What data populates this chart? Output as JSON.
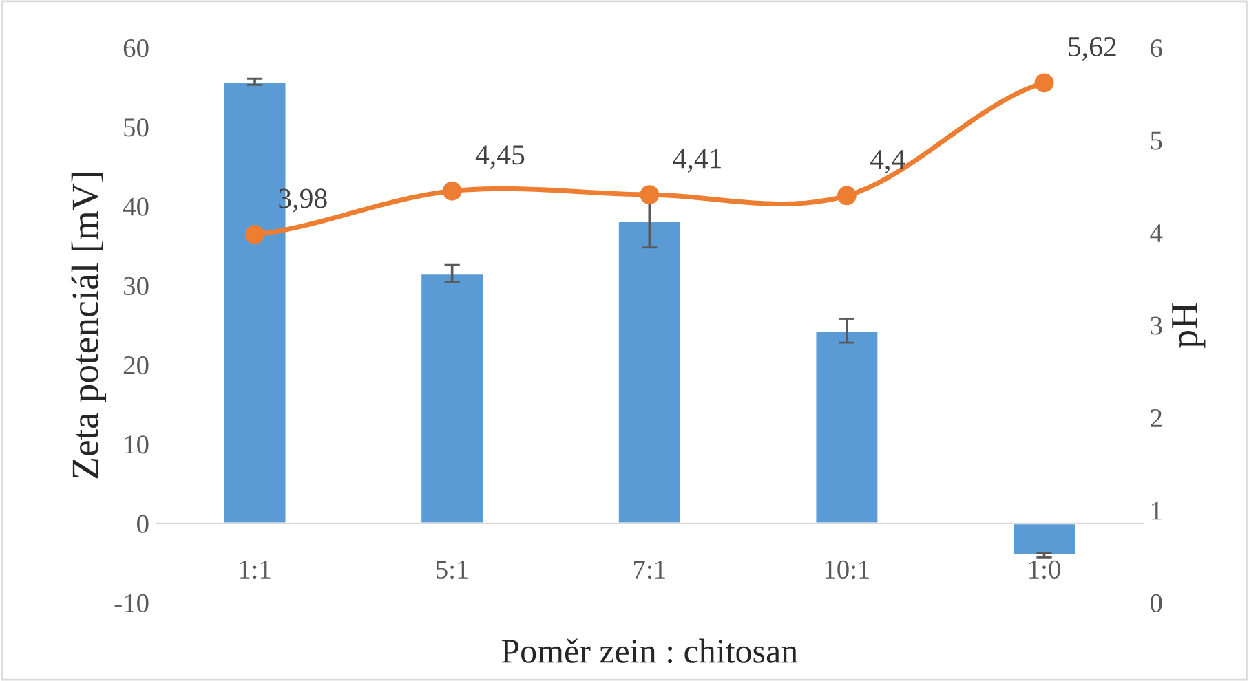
{
  "chart_data": {
    "type": "bar",
    "xlabel": "Poměr zein : chitosan",
    "ylabel": "Zeta potenciál [mV]",
    "y2label": "pH",
    "categories": [
      "1:1",
      "5:1",
      "7:1",
      "10:1",
      "1:0"
    ],
    "series": [
      {
        "color": "#5b9bd5",
        "values": [
          55.7,
          31.5,
          38.1,
          24.3,
          -4.0
        ],
        "errors": [
          0.4,
          1.1,
          3.3,
          1.5,
          0.3
        ]
      },
      {
        "type": "line",
        "axis": "y2",
        "color": "#ed7d31",
        "values": [
          3.98,
          4.45,
          4.41,
          4.4,
          5.62
        ],
        "value_labels": [
          "3,98",
          "4,45",
          "4,41",
          "4,4",
          "5,62"
        ],
        "marker": "circle",
        "line_style": "solid"
      }
    ],
    "ylim": [
      -10,
      60
    ],
    "yticks": [
      -10,
      0,
      10,
      20,
      30,
      40,
      50,
      60
    ],
    "y2lim": [
      0,
      6
    ],
    "y2ticks": [
      0,
      1,
      2,
      3,
      4,
      5,
      6
    ],
    "grid": false,
    "legend": false
  }
}
